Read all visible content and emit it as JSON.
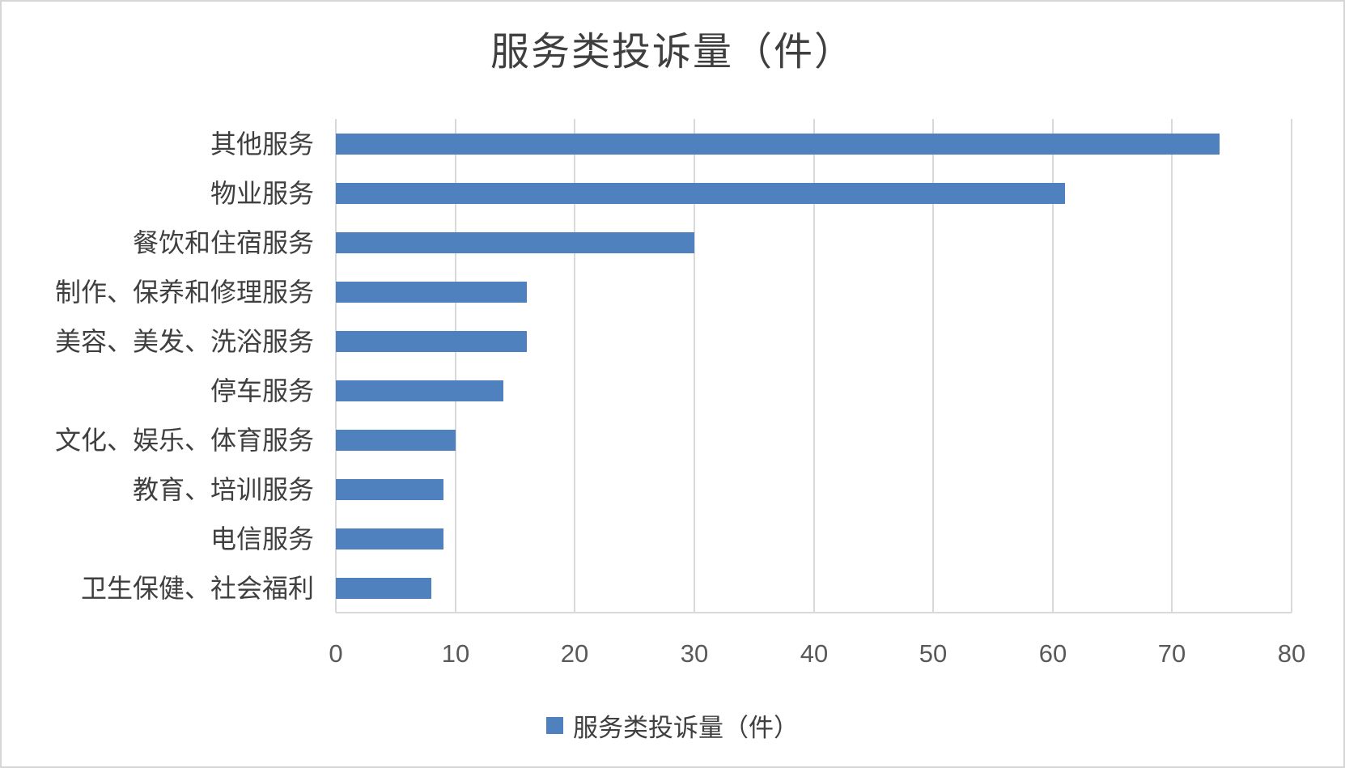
{
  "chart_data": {
    "type": "bar",
    "orientation": "horizontal",
    "title": "服务类投诉量（件）",
    "categories": [
      "其他服务",
      "物业服务",
      "餐饮和住宿服务",
      "制作、保养和修理服务",
      "美容、美发、洗浴服务",
      "停车服务",
      "文化、娱乐、体育服务",
      "教育、培训服务",
      "电信服务",
      "卫生保健、社会福利"
    ],
    "values": [
      74,
      61,
      30,
      16,
      16,
      14,
      10,
      9,
      9,
      8
    ],
    "xlabel": "",
    "ylabel": "",
    "xlim": [
      0,
      80
    ],
    "x_ticks": [
      0,
      10,
      20,
      30,
      40,
      50,
      60,
      70,
      80
    ],
    "grid": true,
    "legend": {
      "label": "服务类投诉量（件）",
      "position": "bottom"
    },
    "colors": {
      "bar": "#4e81bd",
      "gridline": "#d9d9d9",
      "title_text": "#3f3f3f",
      "category_text": "#3f3f3f",
      "tick_text": "#595959",
      "legend_text": "#3f3f3f",
      "background": "#ffffff",
      "border": "#d6d6d6"
    }
  }
}
